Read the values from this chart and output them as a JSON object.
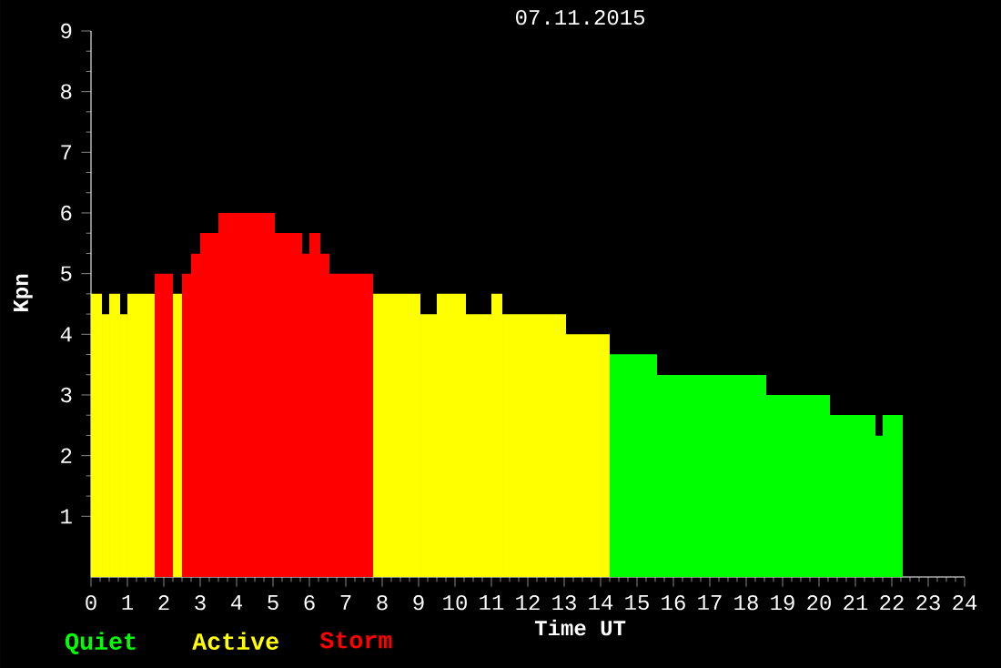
{
  "chart_data": {
    "type": "histogram",
    "title": "07.11.2015",
    "xlabel": "Time UT",
    "ylabel": "Kpn",
    "bins": [
      0,
      0.3,
      0.5,
      0.8,
      1.0,
      1.75,
      2.25,
      2.5,
      2.75,
      3.0,
      3.5,
      5.05,
      5.8,
      6.0,
      6.3,
      6.55,
      7.75,
      9.05,
      9.5,
      10.3,
      11.0,
      11.3,
      13.05,
      14.25,
      15.55,
      18.55,
      20.3,
      21.55,
      21.75,
      22.3
    ],
    "series": [
      {
        "name": "Quiet",
        "color": "#00ff00",
        "values": [
          null,
          null,
          null,
          null,
          null,
          null,
          null,
          null,
          null,
          null,
          null,
          null,
          null,
          null,
          null,
          null,
          null,
          null,
          null,
          null,
          null,
          null,
          null,
          3.67,
          3.33,
          3,
          2.67,
          2.33,
          2.67
        ]
      },
      {
        "name": "Active",
        "color": "#ffff00",
        "values": [
          4.67,
          4.33,
          4.67,
          4.33,
          4.67,
          null,
          4.67,
          null,
          null,
          null,
          null,
          null,
          null,
          null,
          null,
          null,
          4.67,
          4.33,
          4.67,
          4.33,
          4.67,
          4.33,
          4,
          null,
          null,
          null,
          null,
          null,
          null
        ]
      },
      {
        "name": "Storm",
        "color": "#ff0000",
        "values": [
          null,
          null,
          null,
          null,
          null,
          5,
          null,
          5,
          5.33,
          5.67,
          6,
          5.67,
          5.33,
          5.67,
          5.33,
          5,
          null,
          null,
          null,
          null,
          null,
          null,
          null,
          null,
          null,
          null,
          null,
          null,
          null
        ]
      }
    ],
    "xlim": [
      0,
      24
    ],
    "xticks": [
      0,
      1,
      2,
      3,
      4,
      5,
      6,
      7,
      8,
      9,
      10,
      11,
      12,
      13,
      14,
      15,
      16,
      17,
      18,
      19,
      20,
      21,
      22,
      23,
      24
    ],
    "ylim": [
      0,
      9
    ],
    "yticks": [
      1,
      2,
      3,
      4,
      5,
      6,
      7,
      8,
      9
    ],
    "legend": "bottom left",
    "grid": false
  }
}
